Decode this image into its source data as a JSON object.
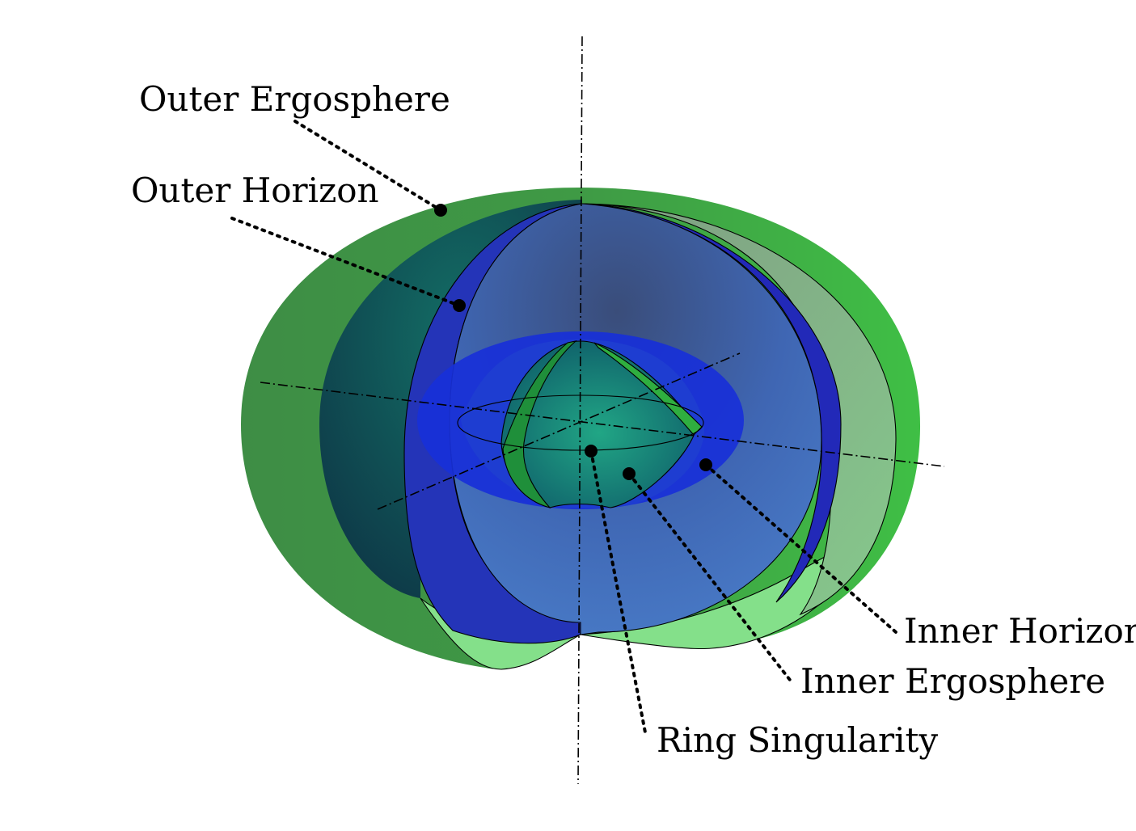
{
  "labels": {
    "outer_ergosphere": "Outer Ergosphere",
    "outer_horizon": "Outer Horizon",
    "inner_horizon": "Inner Horizon",
    "inner_ergosphere": "Inner Ergosphere",
    "ring_singularity": "Ring Singularity"
  },
  "colors": {
    "ergosphere_green": "#3f9a45",
    "ergosphere_light_green": "#84e08a",
    "horizon_blue": "#2530c8",
    "horizon_inner_blue": "#4a7fc9",
    "dark_teal": "#125e5a",
    "grey_green": "#7f9c82",
    "inner_teal": "#1a9a7c",
    "inner_green_band": "#1fa63f"
  }
}
